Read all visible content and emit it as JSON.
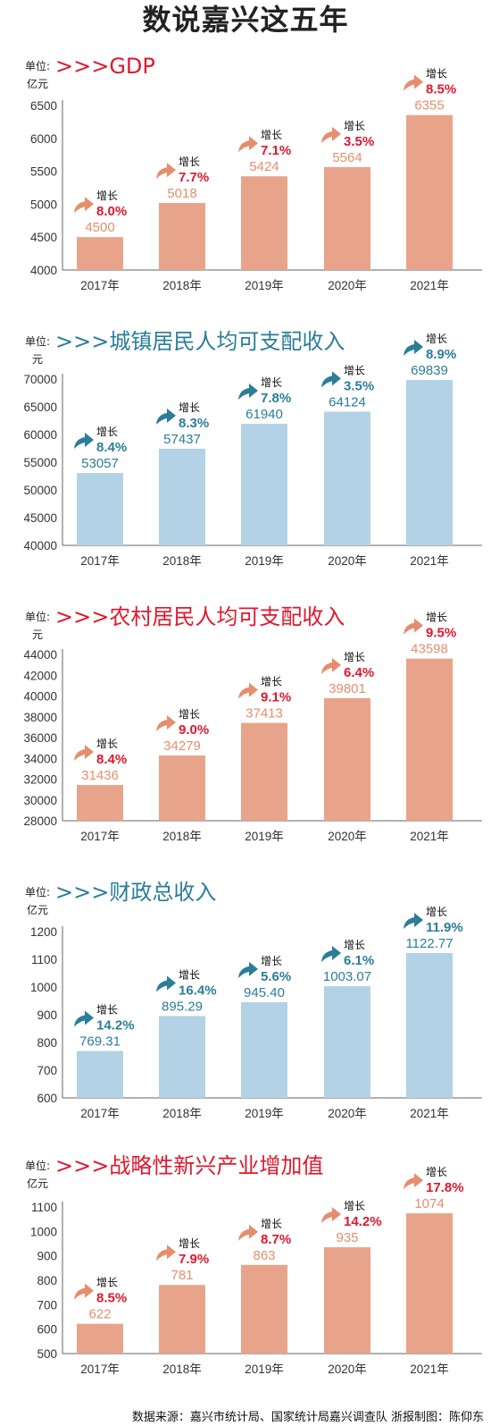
{
  "main_title": "数说嘉兴这五年",
  "source": "数据来源：嘉兴市统计局、国家统计局嘉兴调查队  浙报制图：陈仰东",
  "growth_word": "增长",
  "year_suffix": "年",
  "colors": {
    "orange": "#e8a48a",
    "blue": "#b4d2e5",
    "red": "#e0182d",
    "teal": "#2b7d9a",
    "arrow_orange": "#e58e6e",
    "arrow_blue": "#2b7d9a"
  },
  "chart_data": [
    {
      "type": "bar",
      "title": ">>>GDP",
      "unit": "单位:亿元",
      "categories": [
        "2017年",
        "2018年",
        "2019年",
        "2020年",
        "2021年"
      ],
      "values": [
        4500,
        5018,
        5424,
        5564,
        6355
      ],
      "value_labels": [
        "4500",
        "5018",
        "5424",
        "5564",
        "6355"
      ],
      "growth": [
        "8.0%",
        "7.7%",
        "7.1%",
        "3.5%",
        "8.5%"
      ],
      "ylim": [
        4000,
        6500
      ],
      "yticks": [
        4000,
        4500,
        5000,
        5500,
        6000,
        6500
      ],
      "theme": "orange"
    },
    {
      "type": "bar",
      "title": ">>>城镇居民人均可支配收入",
      "unit": "单位:元",
      "categories": [
        "2017年",
        "2018年",
        "2019年",
        "2020年",
        "2021年"
      ],
      "values": [
        53057,
        57437,
        61940,
        64124,
        69839
      ],
      "value_labels": [
        "53057",
        "57437",
        "61940",
        "64124",
        "69839"
      ],
      "growth": [
        "8.4%",
        "8.3%",
        "7.8%",
        "3.5%",
        "8.9%"
      ],
      "ylim": [
        40000,
        70000
      ],
      "yticks": [
        40000,
        45000,
        50000,
        55000,
        60000,
        65000,
        70000
      ],
      "theme": "blue"
    },
    {
      "type": "bar",
      "title": ">>>农村居民人均可支配收入",
      "unit": "单位:元",
      "categories": [
        "2017年",
        "2018年",
        "2019年",
        "2020年",
        "2021年"
      ],
      "values": [
        31436,
        34279,
        37413,
        39801,
        43598
      ],
      "value_labels": [
        "31436",
        "34279",
        "37413",
        "39801",
        "43598"
      ],
      "growth": [
        "8.4%",
        "9.0%",
        "9.1%",
        "6.4%",
        "9.5%"
      ],
      "ylim": [
        28000,
        44000
      ],
      "yticks": [
        28000,
        30000,
        32000,
        34000,
        36000,
        38000,
        40000,
        42000,
        44000
      ],
      "theme": "orange"
    },
    {
      "type": "bar",
      "title": ">>>财政总收入",
      "unit": "单位:亿元",
      "categories": [
        "2017年",
        "2018年",
        "2019年",
        "2020年",
        "2021年"
      ],
      "values": [
        769.31,
        895.29,
        945.4,
        1003.07,
        1122.77
      ],
      "value_labels": [
        "769.31",
        "895.29",
        "945.40",
        "1003.07",
        "1122.77"
      ],
      "growth": [
        "14.2%",
        "16.4%",
        "5.6%",
        "6.1%",
        "11.9%"
      ],
      "ylim": [
        600,
        1200
      ],
      "yticks": [
        600,
        700,
        800,
        900,
        1000,
        1100,
        1200
      ],
      "theme": "blue"
    },
    {
      "type": "bar",
      "title": ">>>战略性新兴产业增加值",
      "unit": "单位:亿元",
      "categories": [
        "2017年",
        "2018年",
        "2019年",
        "2020年",
        "2021年"
      ],
      "values": [
        622,
        781,
        863,
        935,
        1074
      ],
      "value_labels": [
        "622",
        "781",
        "863",
        "935",
        "1074"
      ],
      "growth": [
        "8.5%",
        "7.9%",
        "8.7%",
        "14.2%",
        "17.8%"
      ],
      "ylim": [
        500,
        1100
      ],
      "yticks": [
        500,
        600,
        700,
        800,
        900,
        1000,
        1100
      ],
      "theme": "orange"
    }
  ]
}
